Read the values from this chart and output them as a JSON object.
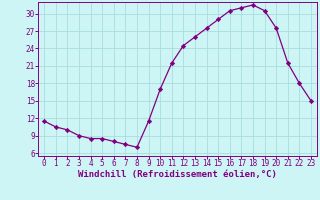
{
  "x": [
    0,
    1,
    2,
    3,
    4,
    5,
    6,
    7,
    8,
    9,
    10,
    11,
    12,
    13,
    14,
    15,
    16,
    17,
    18,
    19,
    20,
    21,
    22,
    23
  ],
  "y": [
    11.5,
    10.5,
    10.0,
    9.0,
    8.5,
    8.5,
    8.0,
    7.5,
    7.0,
    11.5,
    17.0,
    21.5,
    24.5,
    26.0,
    27.5,
    29.0,
    30.5,
    31.0,
    31.5,
    30.5,
    27.5,
    21.5,
    18.0,
    15.0
  ],
  "line_color": "#800080",
  "marker": "D",
  "marker_size": 2.2,
  "background_color": "#cef5f5",
  "grid_color": "#aadddd",
  "xlabel": "Windchill (Refroidissement éolien,°C)",
  "xlim": [
    -0.5,
    23.5
  ],
  "ylim": [
    5.5,
    32
  ],
  "yticks": [
    6,
    9,
    12,
    15,
    18,
    21,
    24,
    27,
    30
  ],
  "xticks": [
    0,
    1,
    2,
    3,
    4,
    5,
    6,
    7,
    8,
    9,
    10,
    11,
    12,
    13,
    14,
    15,
    16,
    17,
    18,
    19,
    20,
    21,
    22,
    23
  ],
  "tick_color": "#800080",
  "label_color": "#800080",
  "label_fontsize": 6.5,
  "tick_fontsize": 5.5
}
